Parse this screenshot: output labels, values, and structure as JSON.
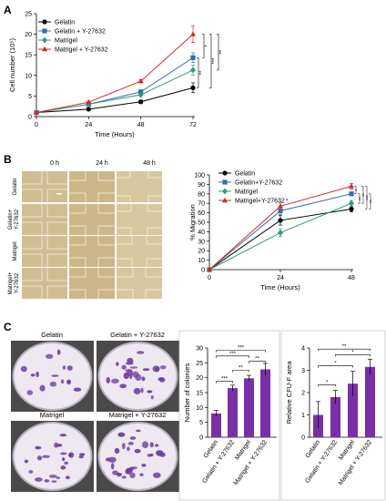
{
  "figure": {
    "panel_letters": [
      "A",
      "B",
      "C"
    ],
    "panel_b_microscopy": {
      "time_labels": [
        "0 h",
        "24 h",
        "48 h"
      ],
      "row_labels": [
        "Gelatin",
        "Gelatin+\nY-27632",
        "Matrigel",
        "Matrigel+\nY-27632"
      ]
    },
    "panel_c_dishes": {
      "labels": [
        "Gelatin",
        "Gelatin + Y-27632",
        "Matrigel",
        "Matrigel + Y-27632"
      ]
    },
    "colors": {
      "gelatin": "#000000",
      "gelatin_y": "#2e6fb5",
      "matrigel": "#2a9d7a",
      "matrigel_y": "#d6262b",
      "bar": "#7a2fa6"
    }
  },
  "chart_data": [
    {
      "id": "A",
      "type": "line",
      "x": [
        0,
        24,
        48,
        72
      ],
      "xlabel": "Time (Hours)",
      "ylabel": "Cell number (10⁵)",
      "ylim": [
        0,
        25
      ],
      "yticks": [
        0,
        5,
        10,
        15,
        20,
        25
      ],
      "series": [
        {
          "name": "Gelatin",
          "values": [
            1,
            1.8,
            3.6,
            7.0
          ],
          "errors": [
            0.2,
            0.3,
            0.4,
            1.2
          ],
          "marker": "circle",
          "color": "#000000"
        },
        {
          "name": "Gelatin + Y-27632",
          "values": [
            1,
            3.0,
            6.0,
            14.3
          ],
          "errors": [
            0.2,
            0.3,
            0.5,
            1.2
          ],
          "marker": "square",
          "color": "#2e6fb5"
        },
        {
          "name": "Matrigel",
          "values": [
            1,
            3.0,
            5.3,
            11.3
          ],
          "errors": [
            0.2,
            0.3,
            0.4,
            1.2
          ],
          "marker": "diamond",
          "color": "#2a9d7a"
        },
        {
          "name": "Matrigel + Y-27632",
          "values": [
            1,
            3.5,
            8.6,
            20.0
          ],
          "errors": [
            0.2,
            0.3,
            0.4,
            2.0
          ],
          "marker": "triangle",
          "color": "#d6262b"
        }
      ],
      "significance": [
        "**",
        "**",
        "*",
        "**",
        "***",
        "**",
        "**"
      ]
    },
    {
      "id": "B",
      "type": "line",
      "x": [
        0,
        24,
        48
      ],
      "xlabel": "Time (Hours)",
      "ylabel": "% Migration",
      "ylim": [
        0,
        100
      ],
      "yticks": [
        0,
        10,
        20,
        30,
        40,
        50,
        60,
        70,
        80,
        90,
        100
      ],
      "series": [
        {
          "name": "Gelatin",
          "values": [
            0,
            52,
            64
          ],
          "errors": [
            0,
            5,
            3
          ],
          "marker": "circle",
          "color": "#000000"
        },
        {
          "name": "Gelatin+Y-27632",
          "values": [
            0,
            62,
            80
          ],
          "errors": [
            0,
            4,
            2
          ],
          "marker": "square",
          "color": "#2e6fb5"
        },
        {
          "name": "Matrigel",
          "values": [
            0,
            39,
            70
          ],
          "errors": [
            0,
            4,
            3
          ],
          "marker": "diamond",
          "color": "#2a9d7a"
        },
        {
          "name": "Matrigel+Y-27632",
          "values": [
            0,
            67,
            88
          ],
          "errors": [
            0,
            4,
            3
          ],
          "marker": "triangle",
          "color": "#d6262b"
        }
      ],
      "significance": [
        "*",
        "**",
        "**",
        "***",
        "**"
      ]
    },
    {
      "id": "C1",
      "type": "bar",
      "categories": [
        "Gelatin",
        "Gelatin + Y-27632",
        "Matrigel",
        "Matrigel + Y-27632"
      ],
      "values": [
        8,
        16.5,
        19.8,
        22.8
      ],
      "errors": [
        1.0,
        1.0,
        1.0,
        2.0
      ],
      "ylabel": "Number of colonies",
      "ylim": [
        0,
        30
      ],
      "yticks": [
        0,
        5,
        10,
        15,
        20,
        25,
        30
      ],
      "significance": [
        "***",
        "***",
        "***",
        "**",
        "**"
      ]
    },
    {
      "id": "C2",
      "type": "bar",
      "categories": [
        "Gelatin",
        "Gelatin + Y-27632",
        "Matrigel",
        "Matrigel + Y-27632"
      ],
      "values": [
        1.0,
        1.8,
        2.4,
        3.15
      ],
      "errors": [
        0.6,
        0.3,
        0.55,
        0.35
      ],
      "ylabel": "Relative CFU-F area",
      "ylim": [
        0,
        4
      ],
      "yticks": [
        0,
        1,
        2,
        3,
        4
      ],
      "significance": [
        "*",
        "*",
        "*",
        "**"
      ]
    }
  ]
}
